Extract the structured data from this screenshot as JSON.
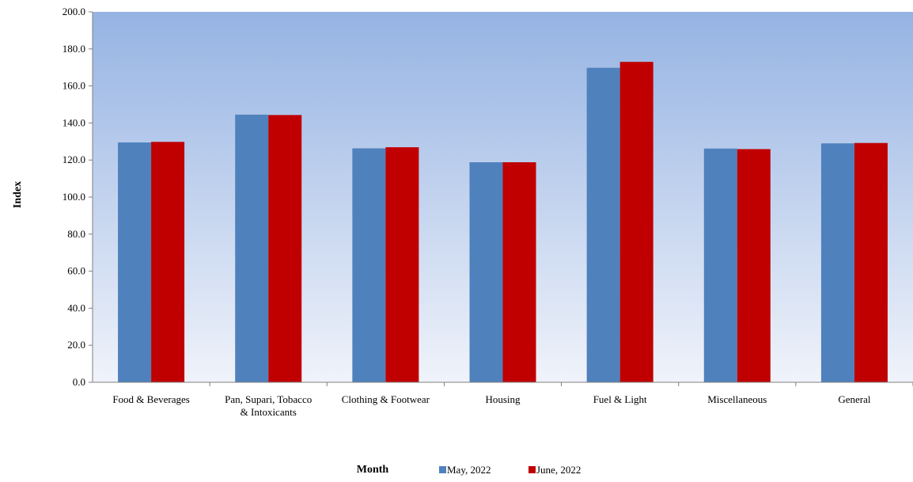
{
  "chart_data": {
    "type": "bar",
    "title": "",
    "xlabel": "Month",
    "ylabel": "Index",
    "ylim": [
      0,
      200
    ],
    "ytick_step": 20,
    "ytick_labels": [
      "0.0",
      "20.0",
      "40.0",
      "60.0",
      "80.0",
      "100.0",
      "120.0",
      "140.0",
      "160.0",
      "180.0",
      "200.0"
    ],
    "grid": false,
    "legend_position": "bottom",
    "categories": [
      [
        "Food & Beverages"
      ],
      [
        "Pan, Supari, Tobacco",
        "& Intoxicants"
      ],
      [
        "Clothing & Footwear"
      ],
      [
        "Housing"
      ],
      [
        "Fuel & Light"
      ],
      [
        "Miscellaneous"
      ],
      [
        "General"
      ]
    ],
    "series": [
      {
        "name": "May, 2022",
        "color": "#4F81BD",
        "values": [
          129.5,
          144.5,
          126.3,
          118.8,
          169.8,
          126.2,
          129.0
        ]
      },
      {
        "name": "June, 2022",
        "color": "#C00000",
        "values": [
          129.8,
          144.3,
          126.9,
          118.8,
          173.0,
          125.9,
          129.2
        ]
      }
    ],
    "plot_background": {
      "top": "#95B3E3",
      "bottom": "#F0F3FA"
    }
  }
}
